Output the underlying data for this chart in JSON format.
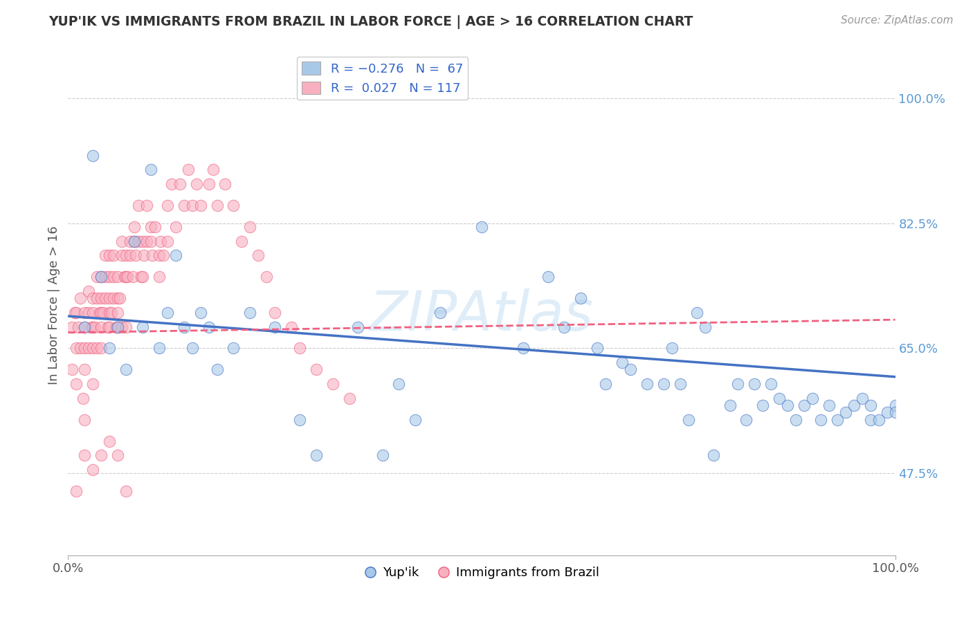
{
  "title": "YUP'IK VS IMMIGRANTS FROM BRAZIL IN LABOR FORCE | AGE > 16 CORRELATION CHART",
  "source": "Source: ZipAtlas.com",
  "ylabel": "In Labor Force | Age > 16",
  "xlim": [
    0.0,
    1.0
  ],
  "ylim": [
    0.36,
    1.06
  ],
  "y_ticks": [
    0.475,
    0.65,
    0.825,
    1.0
  ],
  "y_tick_labels": [
    "47.5%",
    "65.0%",
    "82.5%",
    "100.0%"
  ],
  "color_blue": "#a8c8e8",
  "color_pink": "#f8b0c0",
  "line_blue": "#4472c4",
  "line_pink": "#f06080",
  "watermark": "ZIPAtlas",
  "blue_x": [
    0.02,
    0.03,
    0.04,
    0.05,
    0.06,
    0.07,
    0.08,
    0.09,
    0.1,
    0.11,
    0.12,
    0.13,
    0.14,
    0.15,
    0.16,
    0.17,
    0.18,
    0.2,
    0.22,
    0.25,
    0.28,
    0.3,
    0.35,
    0.4,
    0.45,
    0.5,
    0.55,
    0.58,
    0.6,
    0.62,
    0.64,
    0.65,
    0.67,
    0.68,
    0.7,
    0.72,
    0.73,
    0.74,
    0.75,
    0.76,
    0.77,
    0.78,
    0.8,
    0.81,
    0.82,
    0.83,
    0.84,
    0.85,
    0.86,
    0.87,
    0.88,
    0.89,
    0.9,
    0.91,
    0.92,
    0.93,
    0.94,
    0.95,
    0.96,
    0.97,
    0.97,
    0.98,
    0.99,
    1.0,
    1.0,
    0.42,
    0.38
  ],
  "blue_y": [
    0.68,
    0.92,
    0.75,
    0.65,
    0.68,
    0.62,
    0.8,
    0.68,
    0.9,
    0.65,
    0.7,
    0.78,
    0.68,
    0.65,
    0.7,
    0.68,
    0.62,
    0.65,
    0.7,
    0.68,
    0.55,
    0.5,
    0.68,
    0.6,
    0.7,
    0.82,
    0.65,
    0.75,
    0.68,
    0.72,
    0.65,
    0.6,
    0.63,
    0.62,
    0.6,
    0.6,
    0.65,
    0.6,
    0.55,
    0.7,
    0.68,
    0.5,
    0.57,
    0.6,
    0.55,
    0.6,
    0.57,
    0.6,
    0.58,
    0.57,
    0.55,
    0.57,
    0.58,
    0.55,
    0.57,
    0.55,
    0.56,
    0.57,
    0.58,
    0.55,
    0.57,
    0.55,
    0.56,
    0.57,
    0.56,
    0.55,
    0.5
  ],
  "pink_x": [
    0.005,
    0.005,
    0.008,
    0.01,
    0.01,
    0.01,
    0.01,
    0.012,
    0.015,
    0.015,
    0.018,
    0.02,
    0.02,
    0.02,
    0.02,
    0.02,
    0.025,
    0.025,
    0.025,
    0.028,
    0.03,
    0.03,
    0.03,
    0.03,
    0.03,
    0.032,
    0.035,
    0.035,
    0.035,
    0.038,
    0.04,
    0.04,
    0.04,
    0.04,
    0.04,
    0.042,
    0.045,
    0.045,
    0.045,
    0.048,
    0.05,
    0.05,
    0.05,
    0.05,
    0.05,
    0.052,
    0.055,
    0.055,
    0.055,
    0.058,
    0.06,
    0.06,
    0.06,
    0.06,
    0.062,
    0.065,
    0.065,
    0.065,
    0.068,
    0.07,
    0.07,
    0.07,
    0.072,
    0.075,
    0.075,
    0.078,
    0.08,
    0.08,
    0.082,
    0.085,
    0.085,
    0.088,
    0.09,
    0.09,
    0.092,
    0.095,
    0.095,
    0.1,
    0.1,
    0.102,
    0.105,
    0.11,
    0.11,
    0.112,
    0.115,
    0.12,
    0.12,
    0.125,
    0.13,
    0.135,
    0.14,
    0.145,
    0.15,
    0.155,
    0.16,
    0.17,
    0.175,
    0.18,
    0.19,
    0.2,
    0.21,
    0.22,
    0.23,
    0.24,
    0.25,
    0.27,
    0.28,
    0.3,
    0.32,
    0.34,
    0.02,
    0.03,
    0.04,
    0.05,
    0.06,
    0.07
  ],
  "pink_y": [
    0.68,
    0.62,
    0.7,
    0.7,
    0.65,
    0.6,
    0.45,
    0.68,
    0.72,
    0.65,
    0.58,
    0.7,
    0.68,
    0.65,
    0.62,
    0.55,
    0.73,
    0.7,
    0.65,
    0.68,
    0.72,
    0.7,
    0.68,
    0.65,
    0.6,
    0.68,
    0.75,
    0.72,
    0.65,
    0.7,
    0.75,
    0.72,
    0.7,
    0.68,
    0.65,
    0.7,
    0.78,
    0.75,
    0.72,
    0.68,
    0.78,
    0.75,
    0.72,
    0.7,
    0.68,
    0.7,
    0.78,
    0.75,
    0.72,
    0.68,
    0.75,
    0.72,
    0.7,
    0.68,
    0.72,
    0.8,
    0.78,
    0.68,
    0.75,
    0.78,
    0.75,
    0.68,
    0.75,
    0.8,
    0.78,
    0.75,
    0.82,
    0.8,
    0.78,
    0.85,
    0.8,
    0.75,
    0.8,
    0.75,
    0.78,
    0.85,
    0.8,
    0.82,
    0.8,
    0.78,
    0.82,
    0.78,
    0.75,
    0.8,
    0.78,
    0.85,
    0.8,
    0.88,
    0.82,
    0.88,
    0.85,
    0.9,
    0.85,
    0.88,
    0.85,
    0.88,
    0.9,
    0.85,
    0.88,
    0.85,
    0.8,
    0.82,
    0.78,
    0.75,
    0.7,
    0.68,
    0.65,
    0.62,
    0.6,
    0.58,
    0.5,
    0.48,
    0.5,
    0.52,
    0.5,
    0.45
  ],
  "blue_line_x": [
    0.0,
    1.0
  ],
  "blue_line_y": [
    0.695,
    0.61
  ],
  "pink_line_x": [
    0.0,
    1.0
  ],
  "pink_line_y": [
    0.672,
    0.69
  ]
}
